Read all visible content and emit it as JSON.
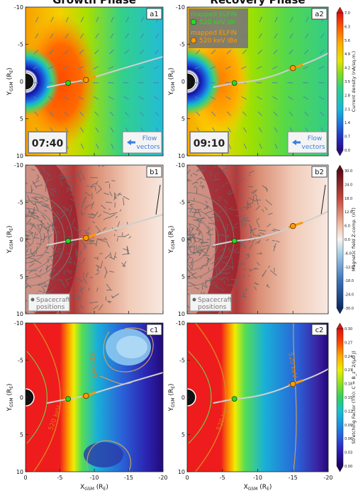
{
  "chart_data": [
    {
      "type": "heatmap",
      "columns": [
        {
          "title": "Growth Phase"
        },
        {
          "title": "Recovery Phase"
        }
      ],
      "xaxis": {
        "label_main": "X",
        "label_sub": "GSM",
        "label_unit": "(R",
        "label_unit_sub": "E",
        "label_close": ")",
        "range": [
          0,
          -20
        ],
        "ticks": [
          0,
          -5,
          -10,
          -15,
          -20
        ],
        "tick_labels": [
          "0",
          "-5",
          "-10",
          "-15",
          "-20"
        ]
      },
      "yaxis": {
        "label_main": "Y",
        "label_sub": "GSM",
        "label_unit": "(R",
        "label_unit_sub": "E",
        "label_close": ")",
        "range": [
          -10,
          10
        ],
        "ticks": [
          -10,
          -5,
          0,
          5,
          10
        ],
        "tick_labels": [
          "-10",
          "-5",
          "0",
          "5",
          "10"
        ]
      },
      "rows": [
        {
          "id": "a",
          "quantity": "Current density",
          "colorbar_label": "Current density (nA/sq.m.)",
          "colorbar_ticks": [
            "0.0",
            "0.7",
            "1.4",
            "2.1",
            "2.8",
            "3.5",
            "4.2",
            "4.9",
            "5.6",
            "6.3",
            "7.0"
          ],
          "colorbar_range": [
            0,
            7
          ],
          "panels": [
            {
              "label": "a1",
              "time": "07:40",
              "annotation_arrow": "Flow vectors",
              "annotation_line1": "Flow",
              "annotation_line2": "vectors",
              "footpoint_green_x": -6.2,
              "footpoint_orange_x": -8.8
            },
            {
              "label": "a2",
              "time": "09:10",
              "annotation_line1": "Flow",
              "annotation_line2": "vectors",
              "legend": [
                {
                  "line1": "mapped ELFIN",
                  "line2": "520 keV IBi",
                  "color": "#22dd22"
                },
                {
                  "line1": "mapped ELFIN",
                  "line2": "520 keV IBe",
                  "color": "#ff9a00"
                }
              ],
              "footpoint_green_x": -6.7,
              "footpoint_orange_x": -15.0
            }
          ]
        },
        {
          "id": "b",
          "quantity": "Magnetic field Z-comp.",
          "colorbar_label": "Magnetic field Z-comp. (nT)",
          "colorbar_ticks": [
            "-30.0",
            "-24.0",
            "-18.0",
            "-12.0",
            "-6.0",
            "0.0",
            "6.0",
            "12.0",
            "18.0",
            "24.0",
            "30.0"
          ],
          "colorbar_range": [
            -30,
            30
          ],
          "panels": [
            {
              "label": "b1",
              "annotation_line1": "Spacecraft",
              "annotation_line2": "positions",
              "footpoint_green_x": -6.2,
              "footpoint_orange_x": -8.8
            },
            {
              "label": "b2",
              "annotation_line1": "Spacecraft",
              "annotation_line2": "positions",
              "footpoint_green_x": -6.7,
              "footpoint_orange_x": -15.0
            }
          ]
        },
        {
          "id": "c",
          "quantity": "Stretching Factor (Tm)",
          "colorbar_label": "Stretching Factor (Tm): C = B_z^2/(μ0 J)",
          "colorbar_ticks": [
            "0.00",
            "0.03",
            "0.06",
            "0.09",
            "0.12",
            "0.15",
            "0.18",
            "0.21",
            "0.24",
            "0.27",
            "0.30"
          ],
          "colorbar_range": [
            0,
            0.3
          ],
          "panels": [
            {
              "label": "c1",
              "contour_label_left": "520 keV",
              "contour_label_right": "520 keV",
              "footpoint_green_x": -6.2,
              "footpoint_orange_x": -8.8
            },
            {
              "label": "c2",
              "contour_label_left": "520 keV",
              "contour_label_right": "520 keV",
              "footpoint_green_x": -6.7,
              "footpoint_orange_x": -15.0
            }
          ]
        }
      ]
    }
  ]
}
